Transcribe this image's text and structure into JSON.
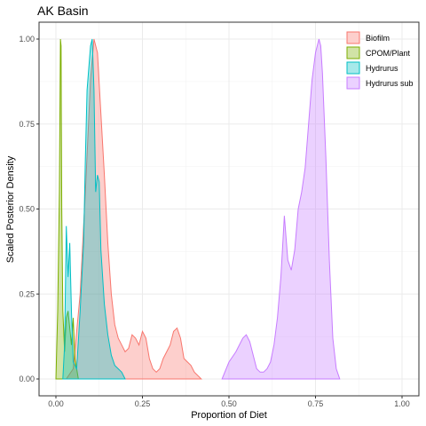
{
  "chart_data": {
    "type": "area",
    "title": "AK Basin",
    "xlabel": "Proportion of Diet",
    "ylabel": "Scaled Posterior Density",
    "xlim": [
      0,
      1
    ],
    "ylim": [
      0,
      1
    ],
    "x_ticks": [
      "0.00",
      "0.25",
      "0.50",
      "0.75",
      "1.00"
    ],
    "y_ticks": [
      "0.00",
      "0.25",
      "0.50",
      "0.75",
      "1.00"
    ],
    "grid": true,
    "legend_position": "top-right",
    "series": [
      {
        "name": "Biofilm",
        "fill": "#f8766d",
        "x": [
          0.03,
          0.05,
          0.07,
          0.085,
          0.1,
          0.11,
          0.12,
          0.13,
          0.14,
          0.15,
          0.16,
          0.17,
          0.18,
          0.19,
          0.2,
          0.21,
          0.22,
          0.23,
          0.24,
          0.25,
          0.26,
          0.27,
          0.28,
          0.29,
          0.3,
          0.31,
          0.32,
          0.33,
          0.34,
          0.35,
          0.36,
          0.37,
          0.38,
          0.39,
          0.4,
          0.42
        ],
        "y": [
          0,
          0.03,
          0.25,
          0.55,
          0.88,
          1.0,
          0.96,
          0.78,
          0.6,
          0.4,
          0.25,
          0.16,
          0.12,
          0.1,
          0.08,
          0.09,
          0.13,
          0.12,
          0.1,
          0.14,
          0.12,
          0.06,
          0.03,
          0.02,
          0.03,
          0.06,
          0.08,
          0.1,
          0.14,
          0.15,
          0.12,
          0.06,
          0.05,
          0.04,
          0.02,
          0
        ]
      },
      {
        "name": "CPOM/Plant",
        "fill": "#7cae00",
        "x": [
          0.0,
          0.005,
          0.01,
          0.013,
          0.015,
          0.017,
          0.02,
          0.025,
          0.03,
          0.035,
          0.04,
          0.045,
          0.05,
          0.055,
          0.06,
          0.065
        ],
        "y": [
          0,
          0.2,
          0.55,
          1.0,
          0.98,
          0.5,
          0.2,
          0.08,
          0.18,
          0.2,
          0.15,
          0.1,
          0.18,
          0.06,
          0.03,
          0
        ]
      },
      {
        "name": "Hydrurus",
        "fill": "#00bfc4",
        "x": [
          0.02,
          0.025,
          0.03,
          0.035,
          0.04,
          0.045,
          0.05,
          0.06,
          0.07,
          0.08,
          0.085,
          0.09,
          0.1,
          0.105,
          0.11,
          0.115,
          0.12,
          0.125,
          0.13,
          0.14,
          0.15,
          0.16,
          0.17,
          0.18,
          0.19,
          0.2
        ],
        "y": [
          0,
          0.1,
          0.45,
          0.3,
          0.4,
          0.2,
          0.05,
          0.03,
          0.2,
          0.4,
          0.65,
          0.85,
          0.98,
          1.0,
          0.85,
          0.55,
          0.6,
          0.58,
          0.38,
          0.22,
          0.13,
          0.07,
          0.04,
          0.03,
          0.02,
          0
        ]
      },
      {
        "name": "Hydrurus sub",
        "fill": "#c77cff",
        "x": [
          0.48,
          0.5,
          0.52,
          0.54,
          0.55,
          0.56,
          0.57,
          0.58,
          0.59,
          0.6,
          0.61,
          0.62,
          0.63,
          0.64,
          0.65,
          0.66,
          0.67,
          0.68,
          0.69,
          0.7,
          0.71,
          0.72,
          0.73,
          0.74,
          0.75,
          0.76,
          0.765,
          0.77,
          0.78,
          0.79,
          0.8,
          0.81,
          0.82
        ],
        "y": [
          0,
          0.05,
          0.08,
          0.12,
          0.13,
          0.11,
          0.07,
          0.03,
          0.02,
          0.02,
          0.03,
          0.05,
          0.1,
          0.18,
          0.3,
          0.48,
          0.35,
          0.32,
          0.38,
          0.5,
          0.55,
          0.62,
          0.75,
          0.88,
          0.96,
          1.0,
          0.98,
          0.9,
          0.65,
          0.35,
          0.12,
          0.03,
          0
        ]
      }
    ]
  }
}
